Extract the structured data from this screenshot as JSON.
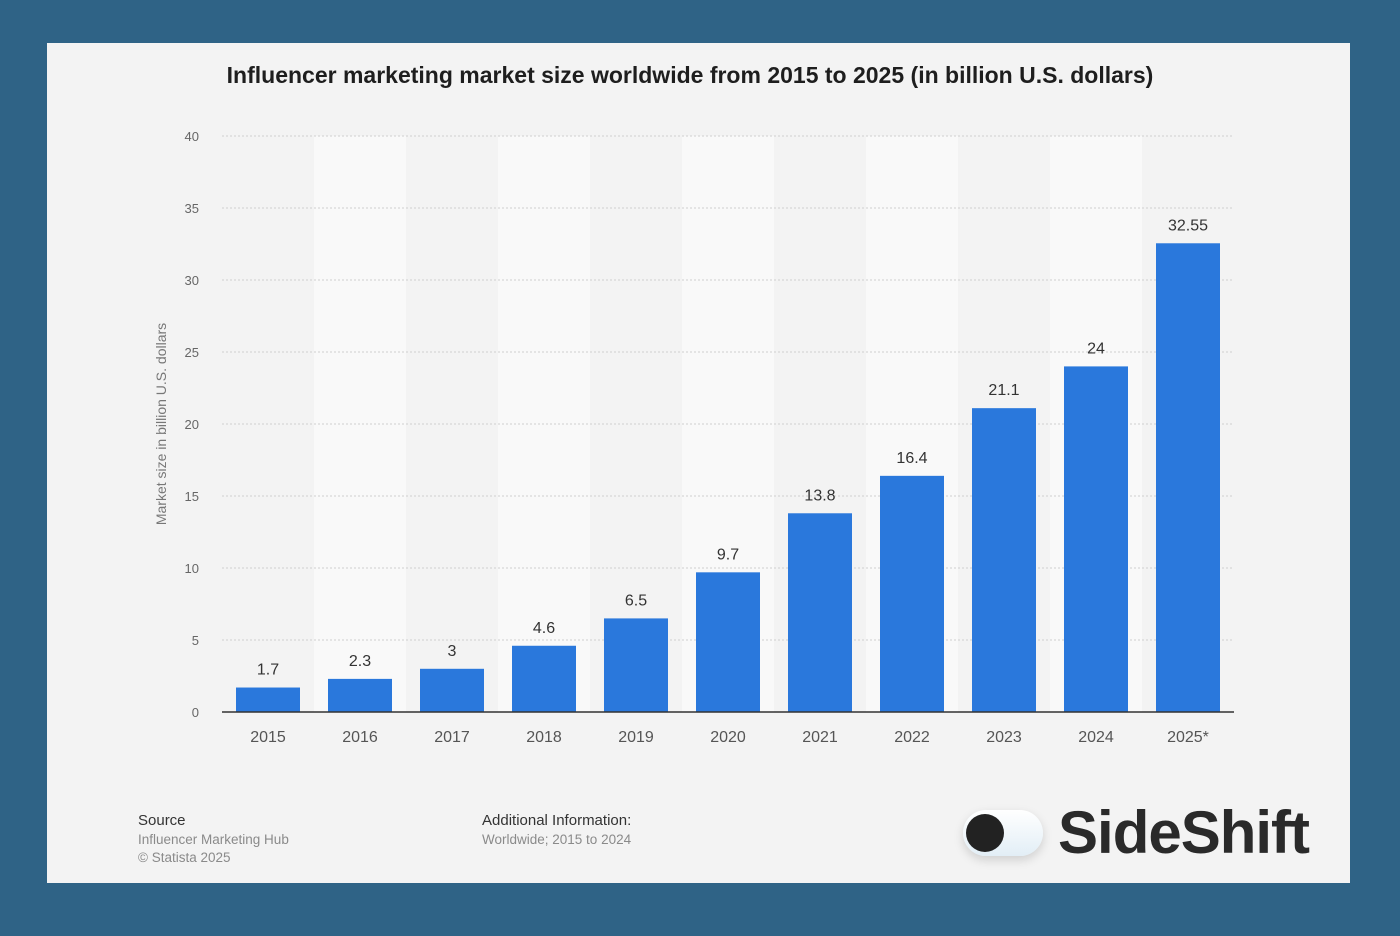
{
  "chart_data": {
    "type": "bar",
    "title": "Influencer marketing market size worldwide from 2015 to 2025 (in billion U.S. dollars)",
    "xlabel": "",
    "ylabel": "Market size in billion U.S. dollars",
    "ylim": [
      0,
      40
    ],
    "yticks": [
      0,
      5,
      10,
      15,
      20,
      25,
      30,
      35,
      40
    ],
    "grid": true,
    "categories": [
      "2015",
      "2016",
      "2017",
      "2018",
      "2019",
      "2020",
      "2021",
      "2022",
      "2023",
      "2024",
      "2025*"
    ],
    "values": [
      1.7,
      2.3,
      3,
      4.6,
      6.5,
      9.7,
      13.8,
      16.4,
      21.1,
      24,
      32.55
    ],
    "bar_color": "#2a78dc"
  },
  "footer": {
    "source_label": "Source",
    "source_lines": [
      "Influencer Marketing Hub",
      "© Statista 2025"
    ],
    "info_label": "Additional Information:",
    "info_text": "Worldwide; 2015 to 2024"
  },
  "logo": {
    "text": "SideShift",
    "icon": "toggle-switch-icon"
  }
}
